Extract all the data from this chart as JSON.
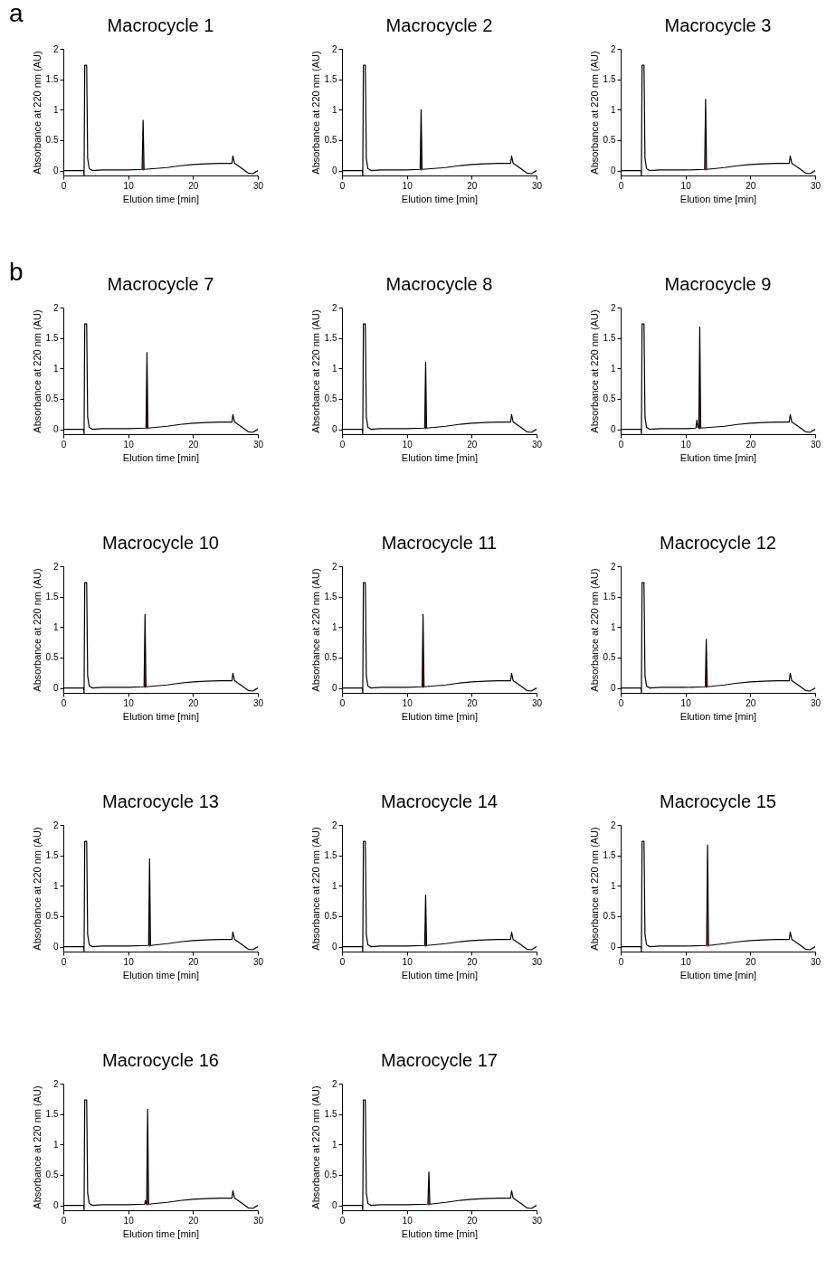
{
  "chart_data": [
    {
      "type": "line",
      "title": "Macrocycle 1",
      "xlabel": "Elution time [min]",
      "ylabel": "Absorbance at 220 nm (AU)",
      "annotations": [
        "a"
      ],
      "xlim": [
        0,
        30
      ],
      "xticks": [
        0,
        10,
        20,
        30
      ],
      "ylim": [
        -0.08,
        2
      ],
      "yticks": [
        0,
        0.5,
        1,
        1.5,
        2
      ],
      "series": [
        {
          "type": "area",
          "color": "#a00000",
          "x": [
            12.2,
            12.3,
            12.4
          ],
          "values": [
            0.02,
            0.83,
            0.02
          ]
        },
        {
          "type": "line",
          "color": "#000000",
          "x": [
            0,
            3.15,
            3.2,
            3.3,
            3.6,
            3.75,
            4,
            4.5,
            6,
            10,
            12.15,
            12.3,
            12.45,
            16,
            18,
            20,
            22,
            24,
            26,
            26.15,
            26.4,
            27.5,
            28.5,
            29.2,
            30
          ],
          "values": [
            0,
            0,
            -0.08,
            1.73,
            1.73,
            0.2,
            0.03,
            0,
            0.01,
            0.01,
            0.02,
            0.83,
            0.02,
            0.05,
            0.08,
            0.1,
            0.11,
            0.12,
            0.12,
            0.24,
            0.12,
            0.04,
            -0.04,
            -0.05,
            0
          ]
        }
      ]
    },
    {
      "type": "line",
      "title": "Macrocycle 2",
      "xlabel": "Elution time [min]",
      "ylabel": "Absorbance at 220 nm (AU)",
      "xlim": [
        0,
        30
      ],
      "xticks": [
        0,
        10,
        20,
        30
      ],
      "ylim": [
        -0.08,
        2
      ],
      "yticks": [
        0,
        0.5,
        1,
        1.5,
        2
      ],
      "series": [
        {
          "type": "area",
          "color": "#a00000",
          "x": [
            12.1,
            12.2,
            12.3
          ],
          "values": [
            0.02,
            1.0,
            0.02
          ]
        },
        {
          "type": "line",
          "color": "#000000",
          "x": [
            0,
            3.15,
            3.2,
            3.3,
            3.6,
            3.75,
            4,
            4.5,
            6,
            10,
            12.05,
            12.2,
            12.35,
            16,
            18,
            20,
            22,
            24,
            26,
            26.15,
            26.4,
            27.5,
            28.5,
            29.2,
            30
          ],
          "values": [
            0,
            0,
            -0.08,
            1.73,
            1.73,
            0.2,
            0.03,
            0,
            0.01,
            0.01,
            0.02,
            1.0,
            0.02,
            0.05,
            0.08,
            0.1,
            0.11,
            0.12,
            0.12,
            0.24,
            0.12,
            0.04,
            -0.04,
            -0.05,
            0
          ]
        }
      ]
    },
    {
      "type": "line",
      "title": "Macrocycle 3",
      "xlabel": "Elution time [min]",
      "ylabel": "Absorbance at 220 nm (AU)",
      "xlim": [
        0,
        30
      ],
      "xticks": [
        0,
        10,
        20,
        30
      ],
      "ylim": [
        -0.08,
        2
      ],
      "yticks": [
        0,
        0.5,
        1,
        1.5,
        2
      ],
      "series": [
        {
          "type": "area",
          "color": "#a00000",
          "x": [
            13,
            13.1,
            13.2
          ],
          "values": [
            0.02,
            1.17,
            0.02
          ]
        },
        {
          "type": "line",
          "color": "#000000",
          "x": [
            0,
            3.15,
            3.2,
            3.3,
            3.6,
            3.75,
            4,
            4.5,
            6,
            10,
            12.95,
            13.1,
            13.25,
            16,
            18,
            20,
            22,
            24,
            26,
            26.15,
            26.4,
            27.5,
            28.5,
            29.2,
            30
          ],
          "values": [
            0,
            0,
            -0.08,
            1.73,
            1.73,
            0.2,
            0.03,
            0,
            0.01,
            0.01,
            0.02,
            1.17,
            0.02,
            0.05,
            0.08,
            0.1,
            0.11,
            0.12,
            0.12,
            0.24,
            0.12,
            0.04,
            -0.04,
            -0.05,
            0
          ]
        }
      ]
    },
    {
      "type": "line",
      "title": "Macrocycle 7",
      "xlabel": "Elution time [min]",
      "ylabel": "Absorbance at 220 nm (AU)",
      "annotations": [
        "b"
      ],
      "xlim": [
        0,
        30
      ],
      "xticks": [
        0,
        10,
        20,
        30
      ],
      "ylim": [
        -0.08,
        2
      ],
      "yticks": [
        0,
        0.5,
        1,
        1.5,
        2
      ],
      "series": [
        {
          "type": "area",
          "color": "#a00000",
          "x": [
            12.8,
            12.9,
            13
          ],
          "values": [
            0.02,
            1.26,
            0.02
          ]
        },
        {
          "type": "line",
          "color": "#000000",
          "x": [
            0,
            3.15,
            3.2,
            3.3,
            3.6,
            3.75,
            4,
            4.5,
            6,
            10,
            12.75,
            12.9,
            13.05,
            16,
            18,
            20,
            22,
            24,
            26,
            26.15,
            26.4,
            27.5,
            28.5,
            29.2,
            30
          ],
          "values": [
            0,
            0,
            -0.08,
            1.73,
            1.73,
            0.2,
            0.03,
            0,
            0.01,
            0.01,
            0.02,
            1.26,
            0.02,
            0.05,
            0.08,
            0.1,
            0.11,
            0.12,
            0.12,
            0.24,
            0.12,
            0.04,
            -0.04,
            -0.05,
            0
          ]
        }
      ]
    },
    {
      "type": "line",
      "title": "Macrocycle 8",
      "xlabel": "Elution time [min]",
      "ylabel": "Absorbance at 220 nm (AU)",
      "xlim": [
        0,
        30
      ],
      "xticks": [
        0,
        10,
        20,
        30
      ],
      "ylim": [
        -0.08,
        2
      ],
      "yticks": [
        0,
        0.5,
        1,
        1.5,
        2
      ],
      "series": [
        {
          "type": "area",
          "color": "#a00000",
          "x": [
            12.8,
            12.9,
            13
          ],
          "values": [
            0.02,
            1.1,
            0.02
          ]
        },
        {
          "type": "line",
          "color": "#000000",
          "x": [
            0,
            3.15,
            3.2,
            3.3,
            3.6,
            3.75,
            4,
            4.5,
            6,
            10,
            12.75,
            12.9,
            13.05,
            16,
            18,
            20,
            22,
            24,
            26,
            26.15,
            26.4,
            27.5,
            28.5,
            29.2,
            30
          ],
          "values": [
            0,
            0,
            -0.08,
            1.73,
            1.73,
            0.2,
            0.03,
            0,
            0.01,
            0.01,
            0.02,
            1.1,
            0.02,
            0.05,
            0.08,
            0.1,
            0.11,
            0.12,
            0.12,
            0.24,
            0.12,
            0.04,
            -0.04,
            -0.05,
            0
          ]
        }
      ]
    },
    {
      "type": "line",
      "title": "Macrocycle 9",
      "xlabel": "Elution time [min]",
      "ylabel": "Absorbance at 220 nm (AU)",
      "xlim": [
        0,
        30
      ],
      "xticks": [
        0,
        10,
        20,
        30
      ],
      "ylim": [
        -0.08,
        2
      ],
      "yticks": [
        0,
        0.5,
        1,
        1.5,
        2
      ],
      "series": [
        {
          "type": "area",
          "color": "#a00000",
          "x": [
            12.1,
            12.2,
            12.3
          ],
          "values": [
            0.02,
            1.68,
            0.02
          ]
        },
        {
          "type": "line",
          "color": "#000000",
          "x": [
            0,
            3.15,
            3.2,
            3.3,
            3.6,
            3.75,
            4,
            4.5,
            6,
            10,
            11.6,
            11.75,
            11.9,
            12.05,
            12.2,
            12.35,
            16,
            18,
            20,
            22,
            24,
            26,
            26.15,
            26.4,
            27.5,
            28.5,
            29.2,
            30
          ],
          "values": [
            0,
            0,
            -0.08,
            1.73,
            1.73,
            0.2,
            0.03,
            0,
            0.01,
            0.01,
            0.02,
            0.15,
            0.03,
            0.02,
            1.68,
            0.02,
            0.05,
            0.08,
            0.1,
            0.11,
            0.12,
            0.12,
            0.24,
            0.12,
            0.04,
            -0.04,
            -0.05,
            0
          ]
        }
      ]
    },
    {
      "type": "line",
      "title": "Macrocycle 10",
      "xlabel": "Elution time [min]",
      "ylabel": "Absorbance at 220 nm (AU)",
      "xlim": [
        0,
        30
      ],
      "xticks": [
        0,
        10,
        20,
        30
      ],
      "ylim": [
        -0.08,
        2
      ],
      "yticks": [
        0,
        0.5,
        1,
        1.5,
        2
      ],
      "series": [
        {
          "type": "area",
          "color": "#a00000",
          "x": [
            12.5,
            12.6,
            12.7
          ],
          "values": [
            0.02,
            1.21,
            0.02
          ]
        },
        {
          "type": "line",
          "color": "#000000",
          "x": [
            0,
            3.15,
            3.2,
            3.3,
            3.6,
            3.75,
            4,
            4.5,
            6,
            10,
            12.45,
            12.6,
            12.75,
            16,
            18,
            20,
            22,
            24,
            26,
            26.15,
            26.4,
            27.5,
            28.5,
            29.2,
            30
          ],
          "values": [
            0,
            0,
            -0.08,
            1.73,
            1.73,
            0.2,
            0.03,
            0,
            0.01,
            0.01,
            0.02,
            1.21,
            0.02,
            0.05,
            0.08,
            0.1,
            0.11,
            0.12,
            0.12,
            0.24,
            0.12,
            0.04,
            -0.04,
            -0.05,
            0
          ]
        }
      ]
    },
    {
      "type": "line",
      "title": "Macrocycle 11",
      "xlabel": "Elution time [min]",
      "ylabel": "Absorbance at 220 nm (AU)",
      "xlim": [
        0,
        30
      ],
      "xticks": [
        0,
        10,
        20,
        30
      ],
      "ylim": [
        -0.08,
        2
      ],
      "yticks": [
        0,
        0.5,
        1,
        1.5,
        2
      ],
      "series": [
        {
          "type": "area",
          "color": "#a00000",
          "x": [
            12.4,
            12.5,
            12.6
          ],
          "values": [
            0.02,
            1.21,
            0.02
          ]
        },
        {
          "type": "line",
          "color": "#000000",
          "x": [
            0,
            3.15,
            3.2,
            3.3,
            3.6,
            3.75,
            4,
            4.5,
            6,
            10,
            12.35,
            12.5,
            12.65,
            16,
            18,
            20,
            22,
            24,
            26,
            26.15,
            26.4,
            27.5,
            28.5,
            29.2,
            30
          ],
          "values": [
            0,
            0,
            -0.08,
            1.73,
            1.73,
            0.2,
            0.03,
            0,
            0.01,
            0.01,
            0.02,
            1.21,
            0.02,
            0.05,
            0.08,
            0.1,
            0.11,
            0.12,
            0.12,
            0.24,
            0.12,
            0.04,
            -0.04,
            -0.05,
            0
          ]
        }
      ]
    },
    {
      "type": "line",
      "title": "Macrocycle 12",
      "xlabel": "Elution time [min]",
      "ylabel": "Absorbance at 220 nm (AU)",
      "xlim": [
        0,
        30
      ],
      "xticks": [
        0,
        10,
        20,
        30
      ],
      "ylim": [
        -0.08,
        2
      ],
      "yticks": [
        0,
        0.5,
        1,
        1.5,
        2
      ],
      "series": [
        {
          "type": "area",
          "color": "#a00000",
          "x": [
            13.1,
            13.2,
            13.3
          ],
          "values": [
            0.02,
            0.8,
            0.02
          ]
        },
        {
          "type": "line",
          "color": "#000000",
          "x": [
            0,
            3.15,
            3.2,
            3.3,
            3.6,
            3.75,
            4,
            4.5,
            6,
            10,
            13.05,
            13.2,
            13.35,
            16,
            18,
            20,
            22,
            24,
            26,
            26.15,
            26.4,
            27.5,
            28.5,
            29.2,
            30
          ],
          "values": [
            0,
            0,
            -0.08,
            1.73,
            1.73,
            0.2,
            0.03,
            0,
            0.01,
            0.01,
            0.02,
            0.8,
            0.02,
            0.05,
            0.08,
            0.1,
            0.11,
            0.12,
            0.12,
            0.24,
            0.12,
            0.04,
            -0.04,
            -0.05,
            0
          ]
        }
      ]
    },
    {
      "type": "line",
      "title": "Macrocycle 13",
      "xlabel": "Elution time [min]",
      "ylabel": "Absorbance at 220 nm (AU)",
      "xlim": [
        0,
        30
      ],
      "xticks": [
        0,
        10,
        20,
        30
      ],
      "ylim": [
        -0.08,
        2
      ],
      "yticks": [
        0,
        0.5,
        1,
        1.5,
        2
      ],
      "series": [
        {
          "type": "area",
          "color": "#a00000",
          "x": [
            13.2,
            13.3,
            13.4
          ],
          "values": [
            0.02,
            1.44,
            0.02
          ]
        },
        {
          "type": "line",
          "color": "#000000",
          "x": [
            0,
            3.15,
            3.2,
            3.3,
            3.6,
            3.75,
            4,
            4.5,
            6,
            10,
            13.15,
            13.3,
            13.45,
            16,
            18,
            20,
            22,
            24,
            26,
            26.15,
            26.4,
            27.5,
            28.5,
            29.2,
            30
          ],
          "values": [
            0,
            0,
            -0.08,
            1.73,
            1.73,
            0.2,
            0.03,
            0,
            0.01,
            0.01,
            0.02,
            1.44,
            0.02,
            0.05,
            0.08,
            0.1,
            0.11,
            0.12,
            0.12,
            0.24,
            0.12,
            0.04,
            -0.04,
            -0.05,
            0
          ]
        }
      ]
    },
    {
      "type": "line",
      "title": "Macrocycle 14",
      "xlabel": "Elution time [min]",
      "ylabel": "Absorbance at 220 nm (AU)",
      "xlim": [
        0,
        30
      ],
      "xticks": [
        0,
        10,
        20,
        30
      ],
      "ylim": [
        -0.08,
        2
      ],
      "yticks": [
        0,
        0.5,
        1,
        1.5,
        2
      ],
      "series": [
        {
          "type": "area",
          "color": "#a00000",
          "x": [
            12.8,
            12.9,
            13
          ],
          "values": [
            0.02,
            0.85,
            0.02
          ]
        },
        {
          "type": "line",
          "color": "#000000",
          "x": [
            0,
            3.15,
            3.2,
            3.3,
            3.6,
            3.75,
            4,
            4.5,
            6,
            10,
            12.75,
            12.9,
            13.05,
            16,
            18,
            20,
            22,
            24,
            26,
            26.15,
            26.4,
            27.5,
            28.5,
            29.2,
            30
          ],
          "values": [
            0,
            0,
            -0.08,
            1.73,
            1.73,
            0.2,
            0.03,
            0,
            0.01,
            0.01,
            0.02,
            0.85,
            0.02,
            0.05,
            0.08,
            0.1,
            0.11,
            0.12,
            0.12,
            0.24,
            0.12,
            0.04,
            -0.04,
            -0.05,
            0
          ]
        }
      ]
    },
    {
      "type": "line",
      "title": "Macrocycle 15",
      "xlabel": "Elution time [min]",
      "ylabel": "Absorbance at 220 nm (AU)",
      "xlim": [
        0,
        30
      ],
      "xticks": [
        0,
        10,
        20,
        30
      ],
      "ylim": [
        -0.08,
        2
      ],
      "yticks": [
        0,
        0.5,
        1,
        1.5,
        2
      ],
      "series": [
        {
          "type": "area",
          "color": "#a00000",
          "x": [
            13.3,
            13.4,
            13.5
          ],
          "values": [
            0.02,
            1.67,
            0.02
          ]
        },
        {
          "type": "line",
          "color": "#000000",
          "x": [
            0,
            3.15,
            3.2,
            3.3,
            3.6,
            3.75,
            4,
            4.5,
            6,
            10,
            13.25,
            13.4,
            13.55,
            16,
            18,
            20,
            22,
            24,
            26,
            26.15,
            26.4,
            27.5,
            28.5,
            29.2,
            30
          ],
          "values": [
            0,
            0,
            -0.08,
            1.73,
            1.73,
            0.2,
            0.03,
            0,
            0.01,
            0.01,
            0.02,
            1.67,
            0.02,
            0.05,
            0.08,
            0.1,
            0.11,
            0.12,
            0.12,
            0.24,
            0.12,
            0.04,
            -0.04,
            -0.05,
            0
          ]
        }
      ]
    },
    {
      "type": "line",
      "title": "Macrocycle 16",
      "xlabel": "Elution time [min]",
      "ylabel": "Absorbance at 220 nm (AU)",
      "xlim": [
        0,
        30
      ],
      "xticks": [
        0,
        10,
        20,
        30
      ],
      "ylim": [
        -0.08,
        2
      ],
      "yticks": [
        0,
        0.5,
        1,
        1.5,
        2
      ],
      "series": [
        {
          "type": "area",
          "color": "#a00000",
          "x": [
            12.9,
            13,
            13.1
          ],
          "values": [
            0.02,
            1.58,
            0.02
          ]
        },
        {
          "type": "line",
          "color": "#000000",
          "x": [
            0,
            3.15,
            3.2,
            3.3,
            3.6,
            3.75,
            4,
            4.5,
            6,
            10,
            12.55,
            12.65,
            12.75,
            12.85,
            13,
            13.15,
            16,
            18,
            20,
            22,
            24,
            26,
            26.15,
            26.4,
            27.5,
            28.5,
            29.2,
            30
          ],
          "values": [
            0,
            0,
            -0.08,
            1.73,
            1.73,
            0.2,
            0.03,
            0,
            0.01,
            0.01,
            0.02,
            0.08,
            0.02,
            0.02,
            1.58,
            0.02,
            0.05,
            0.08,
            0.1,
            0.11,
            0.12,
            0.12,
            0.24,
            0.12,
            0.04,
            -0.04,
            -0.05,
            0
          ]
        }
      ]
    },
    {
      "type": "line",
      "title": "Macrocycle 17",
      "xlabel": "Elution time [min]",
      "ylabel": "Absorbance at 220 nm (AU)",
      "xlim": [
        0,
        30
      ],
      "xticks": [
        0,
        10,
        20,
        30
      ],
      "ylim": [
        -0.08,
        2
      ],
      "yticks": [
        0,
        0.5,
        1,
        1.5,
        2
      ],
      "series": [
        {
          "type": "area",
          "color": "#a00000",
          "x": [
            13.3,
            13.4,
            13.5
          ],
          "values": [
            0.02,
            0.55,
            0.02
          ]
        },
        {
          "type": "line",
          "color": "#000000",
          "x": [
            0,
            3.15,
            3.2,
            3.3,
            3.6,
            3.75,
            4,
            4.5,
            6,
            10,
            13.25,
            13.4,
            13.55,
            16,
            18,
            20,
            22,
            24,
            26,
            26.15,
            26.4,
            27.5,
            28.5,
            29.2,
            30
          ],
          "values": [
            0,
            0,
            -0.08,
            1.73,
            1.73,
            0.2,
            0.03,
            0,
            0.01,
            0.01,
            0.02,
            0.55,
            0.02,
            0.05,
            0.08,
            0.1,
            0.11,
            0.12,
            0.12,
            0.24,
            0.12,
            0.04,
            -0.04,
            -0.05,
            0
          ]
        }
      ]
    }
  ]
}
